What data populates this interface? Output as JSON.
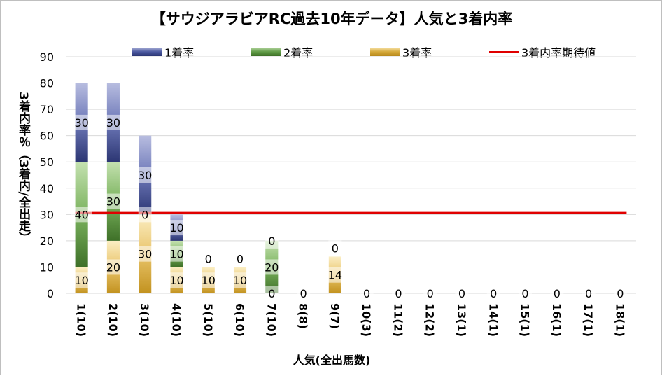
{
  "chart_data": {
    "type": "bar",
    "stacked": true,
    "title": "【サウジアラビアRC過去10年データ】人気と3着内率",
    "xlabel": "人気(全出馬数)",
    "ylabel": "3着内率％（3着内/全出走）",
    "ylim": [
      0,
      90
    ],
    "yticks": [
      0,
      10,
      20,
      30,
      40,
      50,
      60,
      70,
      80,
      90
    ],
    "grid": true,
    "legend_position": "top",
    "categories": [
      "1(10)",
      "2(10)",
      "3(10)",
      "4(10)",
      "5(10)",
      "6(10)",
      "7(10)",
      "8(8)",
      "9(7)",
      "10(3)",
      "11(2)",
      "12(2)",
      "13(1)",
      "14(1)",
      "15(1)",
      "16(1)",
      "17(1)",
      "18(1)"
    ],
    "series": [
      {
        "name": "3着率",
        "color": "#d4a838",
        "values": [
          10,
          20,
          30,
          10,
          10,
          10,
          0,
          0,
          14,
          0,
          0,
          0,
          0,
          0,
          0,
          0,
          0,
          0
        ]
      },
      {
        "name": "2着率",
        "color": "#5f9a45",
        "values": [
          40,
          30,
          0,
          10,
          0,
          0,
          20,
          0,
          0,
          0,
          0,
          0,
          0,
          0,
          0,
          0,
          0,
          0
        ]
      },
      {
        "name": "1着率",
        "color": "#4a579e",
        "values": [
          30,
          30,
          30,
          10,
          0,
          0,
          0,
          0,
          0,
          0,
          0,
          0,
          0,
          0,
          0,
          0,
          0,
          0
        ]
      }
    ],
    "data_labels": [
      [
        "10",
        "40",
        "30"
      ],
      [
        "20",
        "30",
        "30"
      ],
      [
        "30",
        "0",
        "30"
      ],
      [
        "10",
        "10",
        "10"
      ],
      [
        "10",
        "0"
      ],
      [
        "10",
        "0"
      ],
      [
        "0",
        "20",
        "0"
      ],
      [
        "0"
      ],
      [
        "14",
        "0"
      ],
      [
        "0"
      ],
      [
        "0"
      ],
      [
        "0"
      ],
      [
        "0"
      ],
      [
        "0"
      ],
      [
        "0"
      ],
      [
        "0"
      ],
      [
        "0"
      ],
      [
        "0"
      ]
    ],
    "reference_line": {
      "name": "3着内率期待値",
      "value": 30.6,
      "color": "#e00000"
    }
  }
}
